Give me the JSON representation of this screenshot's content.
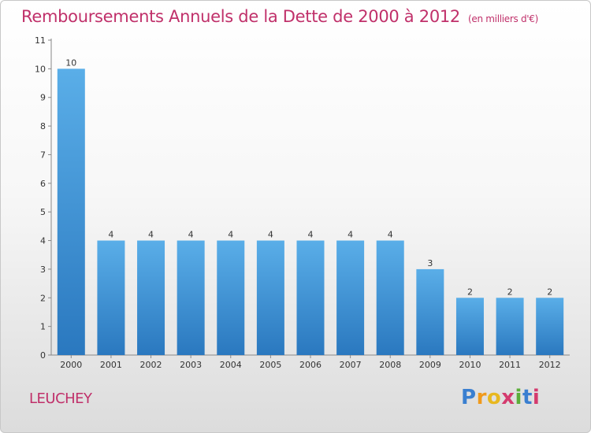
{
  "chart_data": {
    "type": "bar",
    "title": "Remboursements Annuels de la Dette de 2000 à 2012",
    "subtitle": "(en milliers d'€)",
    "categories": [
      "2000",
      "2001",
      "2002",
      "2003",
      "2004",
      "2005",
      "2006",
      "2007",
      "2008",
      "2009",
      "2010",
      "2011",
      "2012"
    ],
    "values": [
      10,
      4,
      4,
      4,
      4,
      4,
      4,
      4,
      4,
      3,
      2,
      2,
      2
    ],
    "ylim": [
      0,
      11
    ],
    "yticks": [
      0,
      1,
      2,
      3,
      4,
      5,
      6,
      7,
      8,
      9,
      10,
      11
    ],
    "grid": false,
    "bar_color_top": "#5aaee8",
    "bar_color_bottom": "#2a78bf"
  },
  "footer": {
    "place": "LEUCHEY",
    "logo_letters": [
      "P",
      "r",
      "o",
      "x",
      "i",
      "t",
      "i"
    ],
    "logo_colors": [
      "#3a7fd0",
      "#f09a1c",
      "#e8b820",
      "#d43b6e",
      "#5cae3a",
      "#3a7fd0",
      "#d43b6e"
    ]
  }
}
